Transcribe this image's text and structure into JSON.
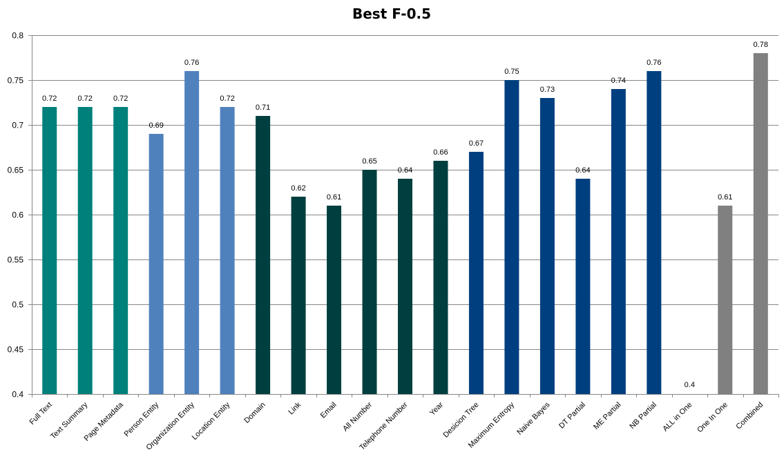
{
  "chart_data": {
    "type": "bar",
    "title": "Best F-0.5",
    "xlabel": "",
    "ylabel": "",
    "ylim": [
      0.4,
      0.8
    ],
    "yticks": [
      "0.4",
      "0.45",
      "0.5",
      "0.55",
      "0.6",
      "0.65",
      "0.7",
      "0.75",
      "0.8"
    ],
    "grid": true,
    "legend": "none",
    "categories": [
      "Full Text",
      "Text Summary",
      "Page Metadata",
      "Person Entity",
      "Organization Entity",
      "Location Entity",
      "Domain",
      "Link",
      "Email",
      "All Number",
      "Telephone Number",
      "Year",
      "Desicion Tree",
      "Maximum Entropy",
      "Naive Bayes",
      "DT Partial",
      "ME Partial",
      "NB Partial",
      "ALL in One",
      "One In One",
      "Combined"
    ],
    "values": [
      0.72,
      0.72,
      0.72,
      0.69,
      0.76,
      0.72,
      0.71,
      0.62,
      0.61,
      0.65,
      0.64,
      0.66,
      0.67,
      0.75,
      0.73,
      0.64,
      0.74,
      0.76,
      0.4,
      0.61,
      0.78
    ],
    "data_labels": [
      "0.72",
      "0.72",
      "0.72",
      "0.69",
      "0.76",
      "0.72",
      "0.71",
      "0.62",
      "0.61",
      "0.65",
      "0.64",
      "0.66",
      "0.67",
      "0.75",
      "0.73",
      "0.64",
      "0.74",
      "0.76",
      "0.4",
      "0.61",
      "0.78"
    ],
    "bar_colors": [
      "#00807a",
      "#00807a",
      "#00807a",
      "#4f81bd",
      "#4f81bd",
      "#4f81bd",
      "#003f3f",
      "#003f3f",
      "#003f3f",
      "#003f3f",
      "#003f3f",
      "#003f3f",
      "#003f7f",
      "#003f7f",
      "#003f7f",
      "#003f7f",
      "#003f7f",
      "#003f7f",
      "#808080",
      "#808080",
      "#808080"
    ]
  }
}
